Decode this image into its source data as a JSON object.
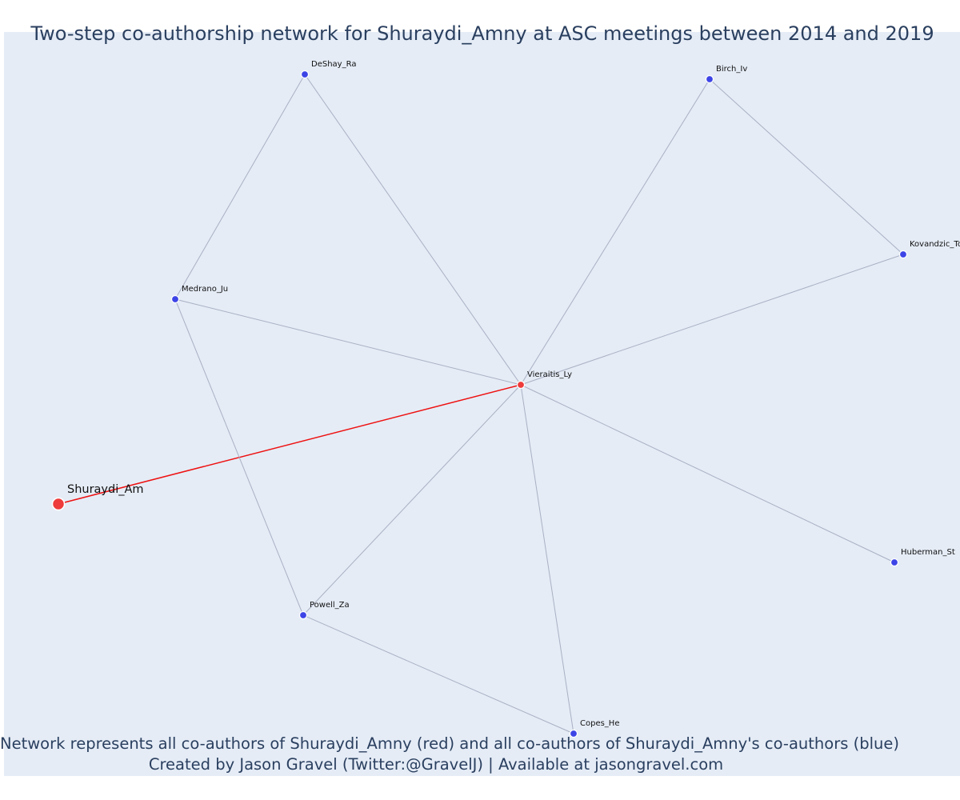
{
  "title": "Two-step co-authorship network for Shuraydi_Amny at ASC meetings between 2014 and 2019",
  "caption_line_1": "Network represents all co-authors of Shuraydi_Amny (red) and all co-authors of Shuraydi_Amny's co-authors (blue)",
  "caption_line_2": "Created by Jason Gravel (Twitter:@GravelJ) | Available at jasongravel.com",
  "colors": {
    "background": "#e5ecf6",
    "ego_node": "#ee3b3b",
    "coauthor_node": "#ee3b3b",
    "second_step_node": "#3d44e6",
    "ego_edge": "#ee1111",
    "other_edge": "#a9b0c3"
  },
  "nodes": [
    {
      "id": "Shuraydi_Am",
      "role": "ego"
    },
    {
      "id": "Vieraitis_Ly",
      "role": "coauthor"
    },
    {
      "id": "DeShay_Ra",
      "role": "second-step"
    },
    {
      "id": "Birch_Iv",
      "role": "second-step"
    },
    {
      "id": "Medrano_Ju",
      "role": "second-step"
    },
    {
      "id": "Kovandzic_To",
      "role": "second-step"
    },
    {
      "id": "Huberman_St",
      "role": "second-step"
    },
    {
      "id": "Powell_Za",
      "role": "second-step"
    },
    {
      "id": "Copes_He",
      "role": "second-step"
    }
  ],
  "edges": [
    {
      "source": "Shuraydi_Am",
      "target": "Vieraitis_Ly",
      "type": "ego"
    },
    {
      "source": "DeShay_Ra",
      "target": "Vieraitis_Ly",
      "type": "other"
    },
    {
      "source": "DeShay_Ra",
      "target": "Medrano_Ju",
      "type": "other"
    },
    {
      "source": "Birch_Iv",
      "target": "Vieraitis_Ly",
      "type": "other"
    },
    {
      "source": "Birch_Iv",
      "target": "Kovandzic_To",
      "type": "other"
    },
    {
      "source": "Kovandzic_To",
      "target": "Vieraitis_Ly",
      "type": "other"
    },
    {
      "source": "Medrano_Ju",
      "target": "Vieraitis_Ly",
      "type": "other"
    },
    {
      "source": "Medrano_Ju",
      "target": "Powell_Za",
      "type": "other"
    },
    {
      "source": "Huberman_St",
      "target": "Vieraitis_Ly",
      "type": "other"
    },
    {
      "source": "Powell_Za",
      "target": "Vieraitis_Ly",
      "type": "other"
    },
    {
      "source": "Powell_Za",
      "target": "Copes_He",
      "type": "other"
    },
    {
      "source": "Copes_He",
      "target": "Vieraitis_Ly",
      "type": "other"
    }
  ]
}
